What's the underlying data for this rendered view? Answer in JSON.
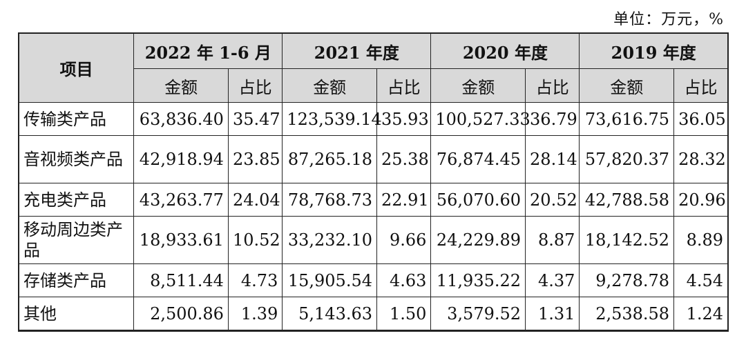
{
  "unit_label": "单位：万元，%",
  "header": {
    "item": "项目",
    "periods": [
      "2022 年 1-6 月",
      "2021 年度",
      "2020 年度",
      "2019 年度"
    ],
    "amount": "金额",
    "ratio": "占比"
  },
  "rows": [
    {
      "label": "传输类产品",
      "values": [
        "63,836.40",
        "35.47",
        "123,539.14",
        "35.93",
        "100,527.33",
        "36.79",
        "73,616.75",
        "36.05"
      ]
    },
    {
      "label": "音视频类产品",
      "values": [
        "42,918.94",
        "23.85",
        "87,265.18",
        "25.38",
        "76,874.45",
        "28.14",
        "57,820.37",
        "28.32"
      ]
    },
    {
      "label": "充电类产品",
      "values": [
        "43,263.77",
        "24.04",
        "78,768.73",
        "22.91",
        "56,070.60",
        "20.52",
        "42,788.58",
        "20.96"
      ]
    },
    {
      "label": "移动周边类产品",
      "values": [
        "18,933.61",
        "10.52",
        "33,232.10",
        "9.66",
        "24,229.89",
        "8.87",
        "18,142.52",
        "8.89"
      ]
    },
    {
      "label": "存储类产品",
      "values": [
        "8,511.44",
        "4.73",
        "15,905.54",
        "4.63",
        "11,935.22",
        "4.37",
        "9,278.78",
        "4.54"
      ]
    },
    {
      "label": "其他",
      "values": [
        "2,500.86",
        "1.39",
        "5,143.63",
        "1.50",
        "3,579.52",
        "1.31",
        "2,538.58",
        "1.24"
      ]
    }
  ]
}
